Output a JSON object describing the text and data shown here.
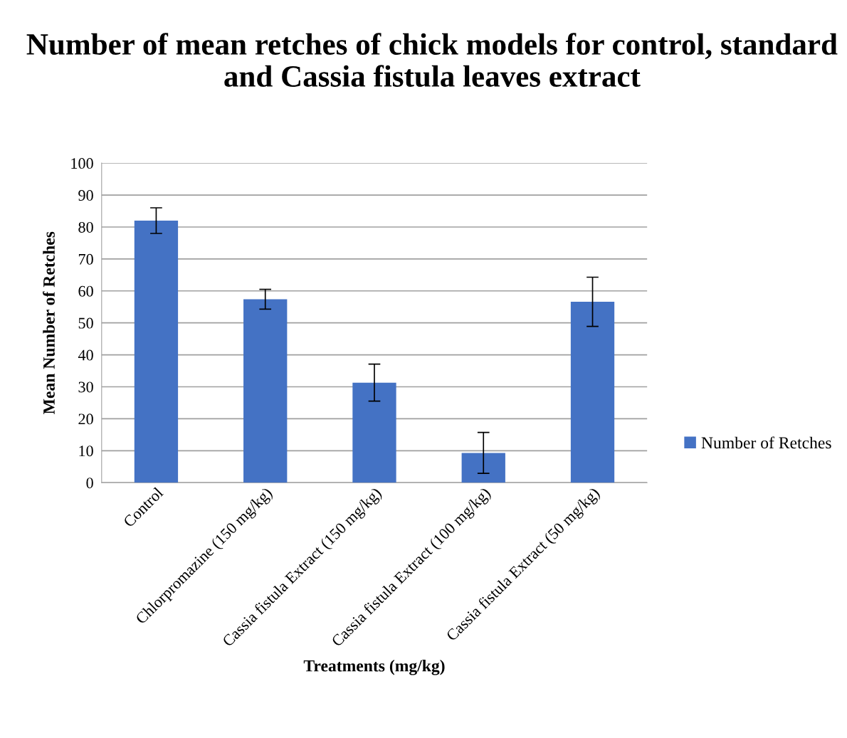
{
  "chart_data": {
    "type": "bar",
    "title": "Number of mean retches of chick models for control, standard and Cassia fistula leaves extract",
    "xlabel": "Treatments (mg/kg)",
    "ylabel": "Mean Number of Retches",
    "categories": [
      "Control",
      "Chlorpromazine (150 mg/kg)",
      "Cassia fistula Extract (150 mg/kg)",
      "Cassia fistula Extract (100 mg/kg)",
      "Cassia fistula Extract (50 mg/kg)"
    ],
    "series": [
      {
        "name": "Number of Retches",
        "color": "#4472c4",
        "values": [
          82,
          57.4,
          31.3,
          9.3,
          56.6
        ],
        "errors": [
          4,
          3.1,
          5.8,
          6.4,
          7.7
        ]
      }
    ],
    "ylim": [
      0,
      100
    ],
    "yticks": [
      0,
      10,
      20,
      30,
      40,
      50,
      60,
      70,
      80,
      90,
      100
    ],
    "grid": "y",
    "legend": "right"
  }
}
